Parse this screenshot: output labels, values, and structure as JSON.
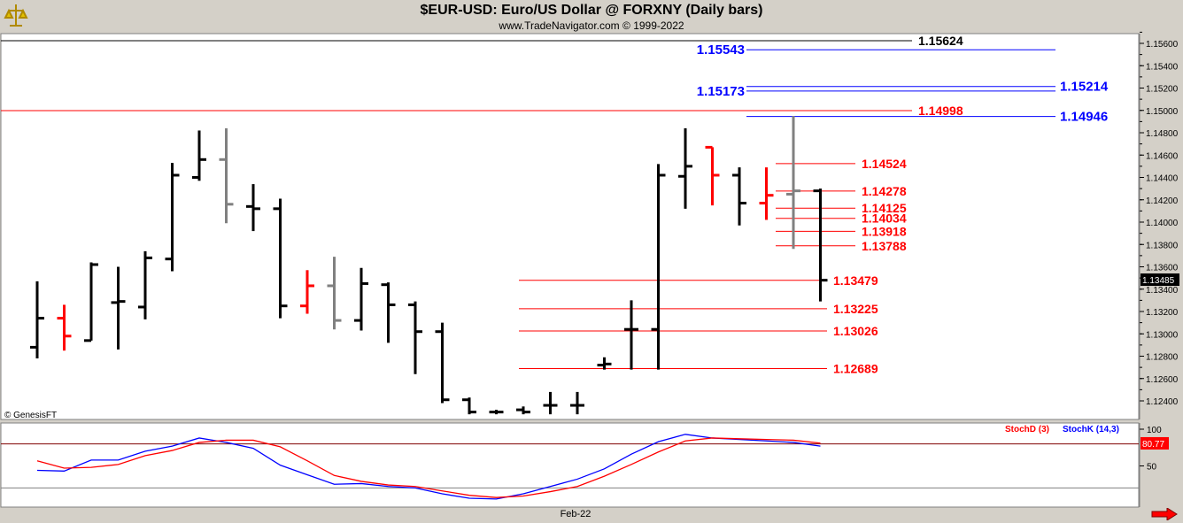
{
  "header": {
    "title": "$EUR-USD:  Euro/US Dollar @ FORXNY  (Daily bars)",
    "subtitle": "www.TradeNavigator.com © 1999-2022"
  },
  "watermark": "© GenesisFT",
  "x_axis_label": "Feb-22",
  "colors": {
    "up_bar": "#000000",
    "down_bar_red": "#ff0000",
    "neutral_bar": "#808080",
    "level_red": "#ff0000",
    "level_blue": "#0000ff",
    "level_black": "#000000",
    "stoch_d": "#ff0000",
    "stoch_k": "#0000ff",
    "background": "#ffffff",
    "frame": "#d4d0c8"
  },
  "chart_data": [
    {
      "type": "ohlc",
      "title": "$EUR-USD:  Euro/US Dollar @ FORXNY  (Daily bars)",
      "ylim": [
        1.1228,
        1.1575
      ],
      "y_ticks": [
        "1.15600",
        "1.15400",
        "1.15200",
        "1.15000",
        "1.14800",
        "1.14600",
        "1.14400",
        "1.14200",
        "1.14000",
        "1.13800",
        "1.13600",
        "1.13400",
        "1.13200",
        "1.13000",
        "1.12800",
        "1.12600",
        "1.12400"
      ],
      "last_price": "1.13485",
      "bars": [
        {
          "o": 1.1288,
          "h": 1.1347,
          "l": 1.1278,
          "c": 1.1314,
          "color": "black"
        },
        {
          "o": 1.1314,
          "h": 1.1326,
          "l": 1.1285,
          "c": 1.1298,
          "color": "red"
        },
        {
          "o": 1.1294,
          "h": 1.1364,
          "l": 1.1294,
          "c": 1.1362,
          "color": "black"
        },
        {
          "o": 1.1328,
          "h": 1.136,
          "l": 1.1286,
          "c": 1.1329,
          "color": "black"
        },
        {
          "o": 1.1324,
          "h": 1.1374,
          "l": 1.1313,
          "c": 1.1368,
          "color": "black"
        },
        {
          "o": 1.1367,
          "h": 1.1453,
          "l": 1.1356,
          "c": 1.1442,
          "color": "black"
        },
        {
          "o": 1.144,
          "h": 1.1482,
          "l": 1.1437,
          "c": 1.1456,
          "color": "black"
        },
        {
          "o": 1.1456,
          "h": 1.1484,
          "l": 1.1399,
          "c": 1.1416,
          "color": "gray"
        },
        {
          "o": 1.1414,
          "h": 1.1434,
          "l": 1.1392,
          "c": 1.1412,
          "color": "black"
        },
        {
          "o": 1.1412,
          "h": 1.1421,
          "l": 1.1314,
          "c": 1.1325,
          "color": "black"
        },
        {
          "o": 1.1325,
          "h": 1.1357,
          "l": 1.1318,
          "c": 1.1343,
          "color": "red"
        },
        {
          "o": 1.1343,
          "h": 1.1369,
          "l": 1.1304,
          "c": 1.1312,
          "color": "gray"
        },
        {
          "o": 1.1312,
          "h": 1.1359,
          "l": 1.1303,
          "c": 1.1345,
          "color": "black"
        },
        {
          "o": 1.1344,
          "h": 1.1346,
          "l": 1.1292,
          "c": 1.1326,
          "color": "black"
        },
        {
          "o": 1.1326,
          "h": 1.1329,
          "l": 1.1264,
          "c": 1.1302,
          "color": "black"
        },
        {
          "o": 1.1302,
          "h": 1.131,
          "l": 1.1238,
          "c": 1.1241,
          "color": "black"
        },
        {
          "o": 1.1241,
          "h": 1.1243,
          "l": 1.1228,
          "c": 1.123,
          "color": "black"
        },
        {
          "o": 1.123,
          "h": 1.1232,
          "l": 1.1228,
          "c": 1.123,
          "color": "black"
        },
        {
          "o": 1.1232,
          "h": 1.1235,
          "l": 1.1228,
          "c": 1.123,
          "color": "black"
        },
        {
          "o": 1.1236,
          "h": 1.1248,
          "l": 1.1228,
          "c": 1.1236,
          "color": "black"
        },
        {
          "o": 1.1236,
          "h": 1.1248,
          "l": 1.1228,
          "c": 1.1236,
          "color": "black"
        },
        {
          "o": 1.1272,
          "h": 1.1279,
          "l": 1.1268,
          "c": 1.1273,
          "color": "black"
        },
        {
          "o": 1.1304,
          "h": 1.133,
          "l": 1.1268,
          "c": 1.1304,
          "color": "black"
        },
        {
          "o": 1.1304,
          "h": 1.1452,
          "l": 1.1268,
          "c": 1.1442,
          "color": "black"
        },
        {
          "o": 1.1441,
          "h": 1.1484,
          "l": 1.1412,
          "c": 1.145,
          "color": "black"
        },
        {
          "o": 1.1467,
          "h": 1.1467,
          "l": 1.1415,
          "c": 1.1442,
          "color": "red"
        },
        {
          "o": 1.1442,
          "h": 1.1449,
          "l": 1.1397,
          "c": 1.1417,
          "color": "black"
        },
        {
          "o": 1.1417,
          "h": 1.1449,
          "l": 1.1402,
          "c": 1.1424,
          "color": "red"
        },
        {
          "o": 1.1425,
          "h": 1.1495,
          "l": 1.1376,
          "c": 1.1428,
          "color": "gray"
        },
        {
          "o": 1.1428,
          "h": 1.143,
          "l": 1.1329,
          "c": 1.1348,
          "color": "black"
        }
      ],
      "levels": [
        {
          "value": 1.15624,
          "label": "1.15624",
          "color": "black",
          "label_side": "right"
        },
        {
          "value": 1.15543,
          "label": "1.15543",
          "color": "blue",
          "label_side": "left"
        },
        {
          "value": 1.15214,
          "label": "1.15214",
          "color": "blue",
          "label_side": "right"
        },
        {
          "value": 1.15173,
          "label": "1.15173",
          "color": "blue",
          "label_side": "left"
        },
        {
          "value": 1.14998,
          "label": "1.14998",
          "color": "red",
          "label_side": "right"
        },
        {
          "value": 1.14946,
          "label": "1.14946",
          "color": "blue",
          "label_side": "right"
        },
        {
          "value": 1.14524,
          "label": "1.14524",
          "color": "red",
          "label_side": "right"
        },
        {
          "value": 1.14278,
          "label": "1.14278",
          "color": "red",
          "label_side": "right"
        },
        {
          "value": 1.14125,
          "label": "1.14125",
          "color": "red",
          "label_side": "right"
        },
        {
          "value": 1.14034,
          "label": "1.14034",
          "color": "red",
          "label_side": "right"
        },
        {
          "value": 1.13918,
          "label": "1.13918",
          "color": "red",
          "label_side": "right"
        },
        {
          "value": 1.13788,
          "label": "1.13788",
          "color": "red",
          "label_side": "right"
        },
        {
          "value": 1.13479,
          "label": "1.13479",
          "color": "red",
          "label_side": "right"
        },
        {
          "value": 1.13225,
          "label": "1.13225",
          "color": "red",
          "label_side": "right"
        },
        {
          "value": 1.13026,
          "label": "1.13026",
          "color": "red",
          "label_side": "right"
        },
        {
          "value": 1.12689,
          "label": "1.12689",
          "color": "red",
          "label_side": "right"
        }
      ]
    },
    {
      "type": "line",
      "legend": [
        "StochD (3)",
        "StochK (14,3)"
      ],
      "y_ticks": [
        "100",
        "50"
      ],
      "level_line": 80,
      "last_value": "80.77",
      "series": [
        {
          "name": "StochK (14,3)",
          "values": [
            44,
            43,
            58,
            58,
            70,
            77,
            88,
            82,
            74,
            51,
            38,
            25,
            26,
            22,
            20,
            12,
            6,
            5,
            12,
            22,
            32,
            46,
            66,
            83,
            93,
            88,
            86,
            84,
            82,
            77
          ]
        },
        {
          "name": "StochD (3)",
          "values": [
            57,
            47,
            48,
            52,
            64,
            71,
            82,
            85,
            85,
            76,
            57,
            37,
            29,
            24,
            22,
            16,
            10,
            7,
            9,
            15,
            22,
            36,
            52,
            69,
            84,
            88,
            87,
            86,
            85,
            81
          ]
        }
      ]
    }
  ]
}
